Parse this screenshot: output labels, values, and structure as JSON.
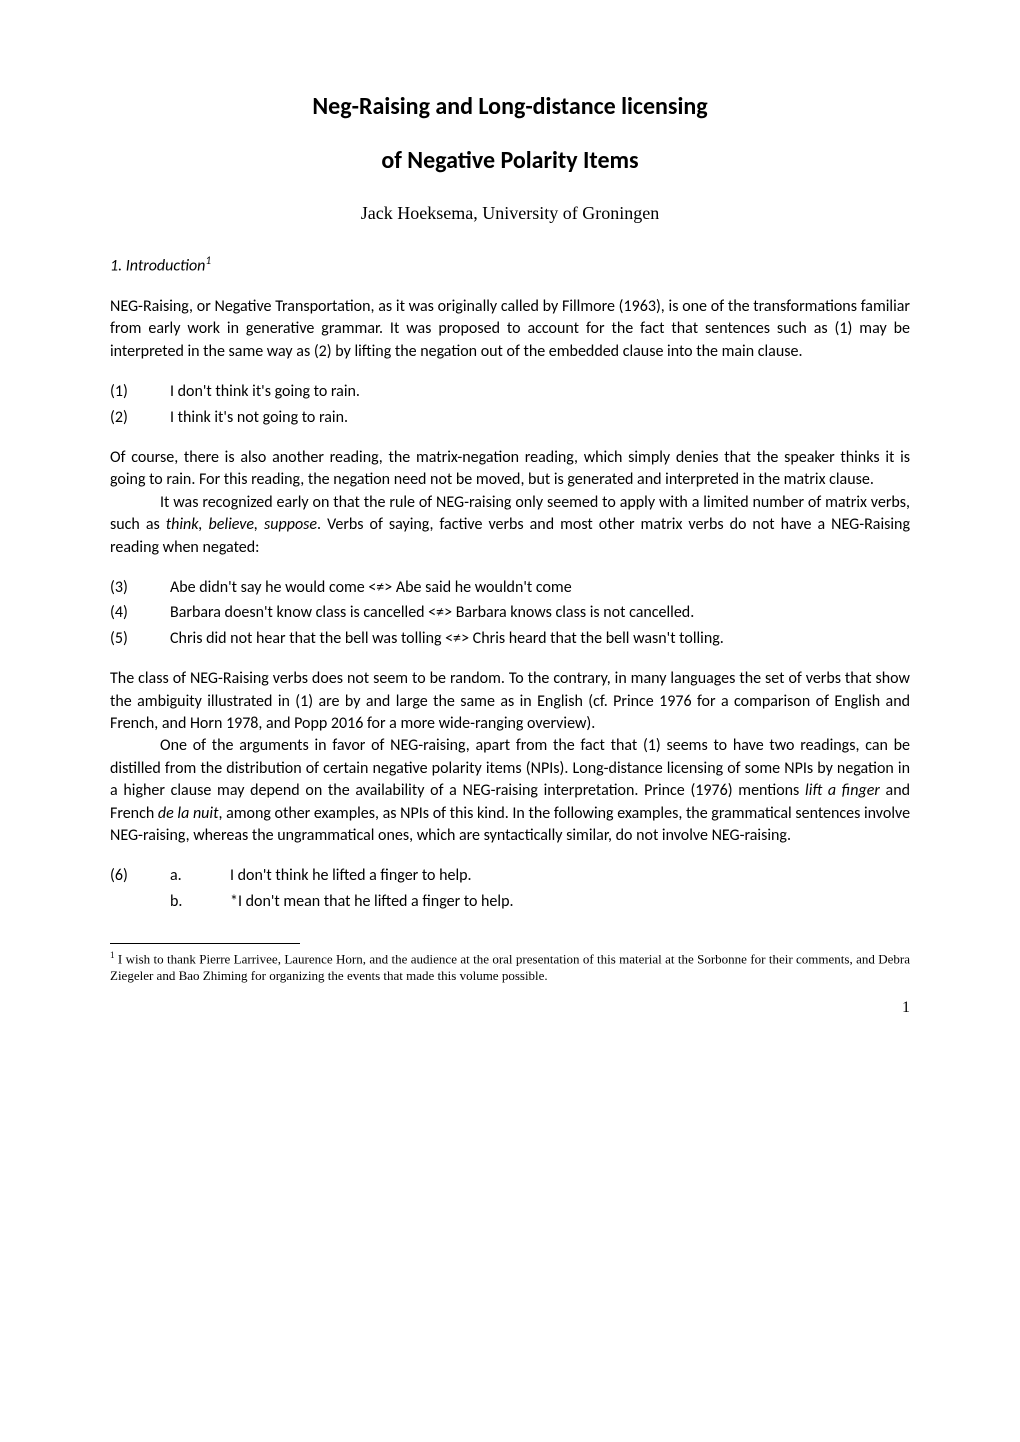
{
  "title": "Neg-Raising and Long-distance licensing",
  "subtitle": "of Negative Polarity Items",
  "author": "Jack Hoeksema, University of Groningen",
  "section_heading_prefix": "1.  Introduction",
  "section_heading_sup": "1",
  "para1": "NEG-Raising, or Negative Transportation, as it was originally called by Fillmore (1963), is one of the transformations familiar from early work in generative grammar. It was proposed to account for the fact that sentences such as (1) may be interpreted in the same way as (2) by lifting the negation out of the embedded clause into the main clause.",
  "items1": [
    {
      "num": "(1)",
      "text": "I don't think it's going to rain."
    },
    {
      "num": "(2)",
      "text": "I think it's not going to rain."
    }
  ],
  "para2": "Of course, there is also another reading, the matrix-negation reading, which simply denies that the speaker thinks it is going to rain. For this reading, the negation need not be moved, but is generated and interpreted in the matrix clause.",
  "para3_pre": "It was recognized early on that the rule of NEG-raising only seemed to apply with a limited number of matrix verbs, such as ",
  "para3_italic": "think, believe, suppose",
  "para3_post": ". Verbs of saying, factive verbs and most other matrix verbs do not have a NEG-Raising reading when negated:",
  "items2": [
    {
      "num": "(3)",
      "text": "Abe didn't say he would come <≠> Abe said he wouldn't come"
    },
    {
      "num": "(4)",
      "text": "Barbara doesn't know class is cancelled <≠> Barbara knows class is not cancelled."
    },
    {
      "num": "(5)",
      "text": "Chris did not hear that the bell was tolling <≠> Chris heard that the bell wasn't tolling."
    }
  ],
  "para4": "The class of NEG-Raising verbs does not seem to be random. To the contrary, in many languages the set of verbs that show the ambiguity illustrated in (1) are by and large the same as in English (cf. Prince 1976 for a comparison of English and French, and Horn 1978, and Popp 2016 for a more wide-ranging overview).",
  "para5_a": "One of the arguments in favor of NEG-raising, apart from the fact that (1) seems to have two readings, can be distilled from the distribution of certain negative polarity items (NPIs). Long-distance licensing of some NPIs by negation in a higher clause may depend on the availability of a NEG-raising interpretation. Prince (1976) mentions ",
  "para5_i1": "lift a finger",
  "para5_b": " and French ",
  "para5_i2": "de la nuit",
  "para5_c": ", among other examples, as NPIs of this kind. In the following examples, the grammatical sentences involve NEG-raising, whereas the ungrammatical ones, which are syntactically similar, do not involve NEG-raising.",
  "items3": {
    "num": "(6)",
    "a_letter": "a.",
    "a_text": "I don't think he lifted a finger to help.",
    "b_letter": "b.",
    "b_text": "*I don't mean that he lifted a finger to help."
  },
  "footnote_sup": "1",
  "footnote_text": " I wish to thank Pierre Larrivee, Laurence Horn, and the audience at the oral presentation of this material at the Sorbonne for their comments, and Debra Ziegeler and Bao Zhiming for organizing the events that made this volume possible.",
  "page_number": "1"
}
